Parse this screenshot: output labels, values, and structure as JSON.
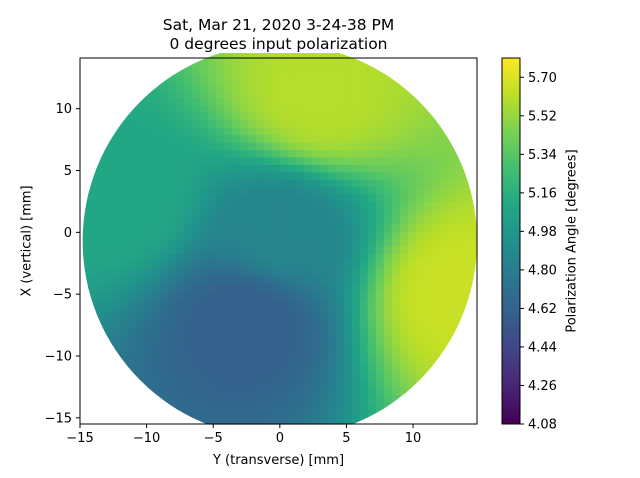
{
  "chart_data": {
    "type": "heatmap",
    "title": "Sat, Mar 21, 2020 3-24-38 PM",
    "subtitle": "0 degrees input polarization",
    "xlabel": "Y (transverse) [mm]",
    "ylabel": "X (vertical) [mm]",
    "colorbar_label": "Polarization Angle [degrees]",
    "colormap": "viridis",
    "xlim": [
      -15,
      14.8
    ],
    "ylim": [
      -15.5,
      14.1
    ],
    "clim": [
      4.08,
      5.79
    ],
    "x_ticks": [
      -15,
      -10,
      -5,
      0,
      5,
      10
    ],
    "y_ticks": [
      -15,
      -10,
      -5,
      0,
      5,
      10
    ],
    "colorbar_ticks": [
      "4.08",
      "4.26",
      "4.44",
      "4.62",
      "4.80",
      "4.98",
      "5.16",
      "5.34",
      "5.52",
      "5.70"
    ],
    "aperture": {
      "shape": "circle",
      "center": [
        0,
        -0.7
      ],
      "radius": 14.8
    },
    "grid": false,
    "value_estimates": [
      {
        "region": "center",
        "y": 0,
        "x": 0,
        "value": 4.85
      },
      {
        "region": "lower-left dark stripe",
        "y": -2.5,
        "x": -7,
        "value": 4.6
      },
      {
        "region": "upper stripe",
        "y": 3,
        "x": 11,
        "value": 5.6
      },
      {
        "region": "right edge",
        "y": 13.5,
        "x": -5,
        "value": 5.65
      },
      {
        "region": "left edge",
        "y": -12,
        "x": 3,
        "value": 5.1
      }
    ]
  }
}
